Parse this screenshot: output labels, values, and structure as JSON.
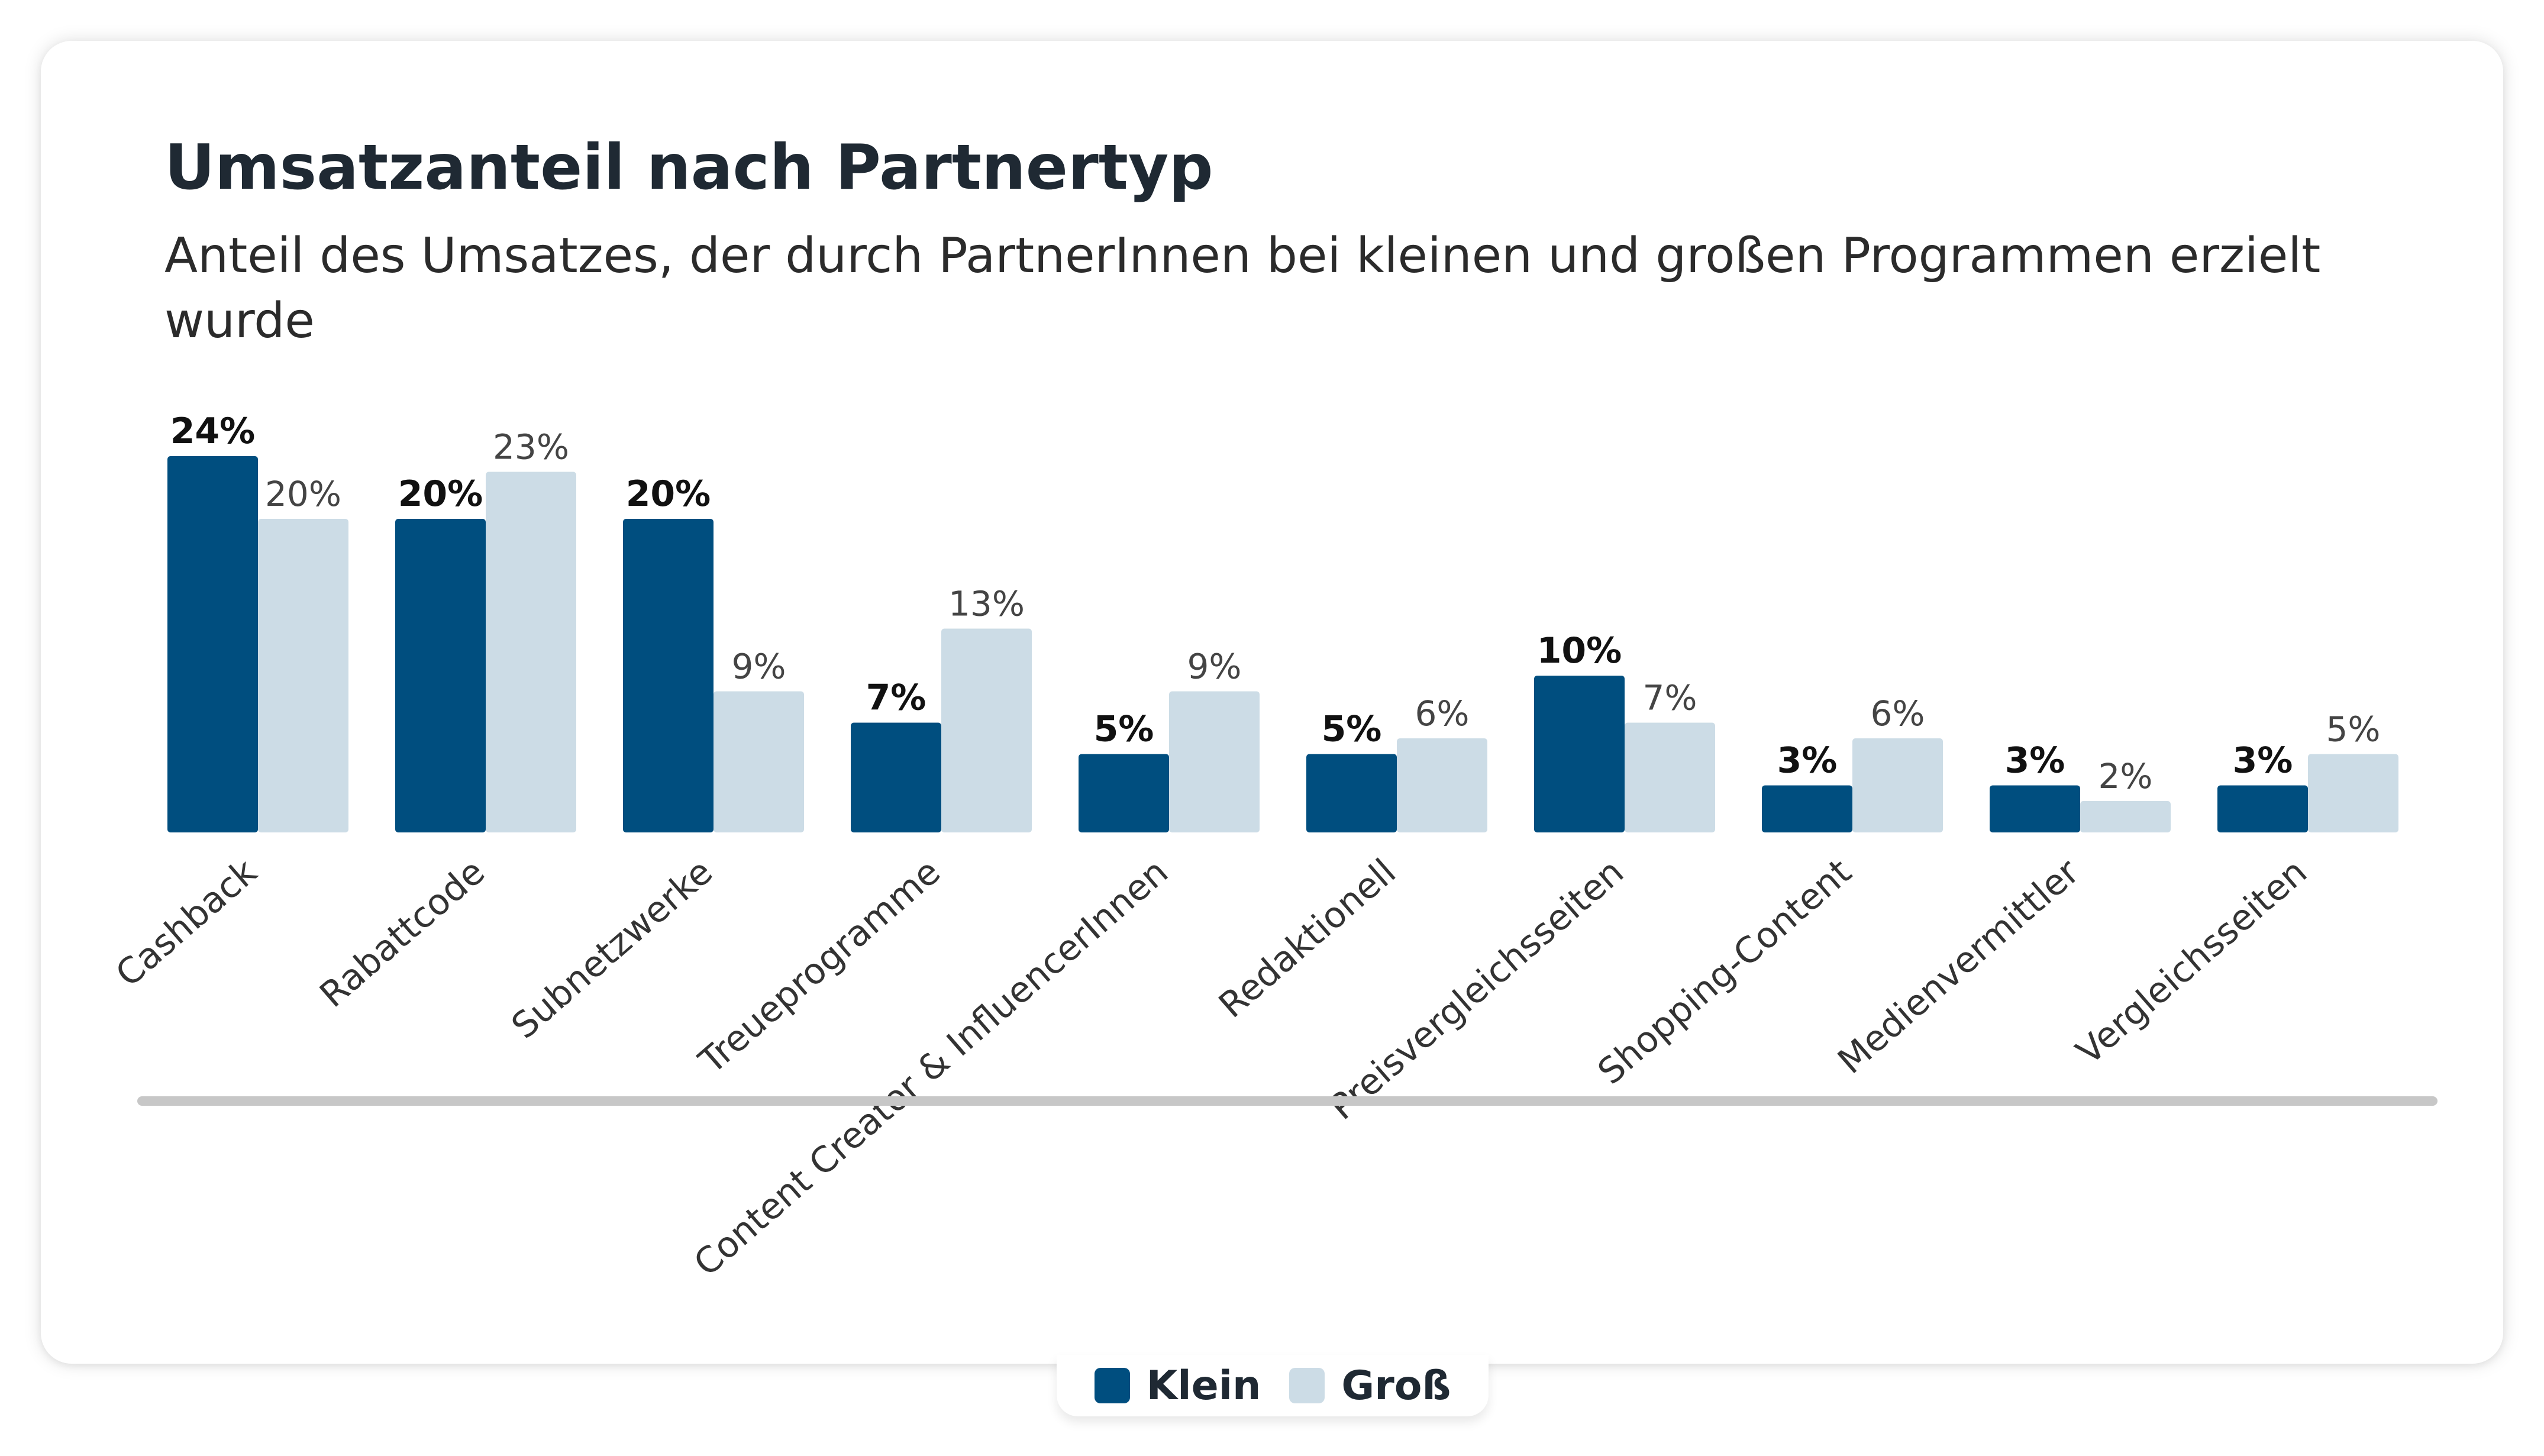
{
  "header": {
    "title": "Umsatzanteil nach Partnertyp",
    "subtitle": "Anteil des Umsatzes, der durch PartnerInnen bei kleinen und großen Programmen erzielt wurde"
  },
  "colors": {
    "klein": "#004e7f",
    "gross": "#ccdce6",
    "baseline": "#c7c7c7"
  },
  "legend": [
    {
      "label": "Klein",
      "color": "#004e7f"
    },
    {
      "label": "Groß",
      "color": "#ccdce6"
    }
  ],
  "chart_data": {
    "type": "bar",
    "title": "Umsatzanteil nach Partnertyp",
    "subtitle": "Anteil des Umsatzes, der durch PartnerInnen bei kleinen und großen Programmen erzielt wurde",
    "categories": [
      "Cashback",
      "Rabattcode",
      "Subnetzwerke",
      "Treueprogramme",
      "Content Creator & InfluencerInnen",
      "Redaktionell",
      "Preisvergleichsseiten",
      "Shopping-Content",
      "Medienvermittler",
      "Vergleichsseiten"
    ],
    "series": [
      {
        "name": "Klein",
        "values": [
          24,
          20,
          20,
          7,
          5,
          5,
          10,
          3,
          3,
          3
        ],
        "unit": "%"
      },
      {
        "name": "Groß",
        "values": [
          20,
          23,
          9,
          13,
          9,
          6,
          7,
          6,
          2,
          5
        ],
        "unit": "%"
      }
    ],
    "ylim": [
      0,
      24
    ],
    "grid": false,
    "legend_position": "bottom-center"
  }
}
